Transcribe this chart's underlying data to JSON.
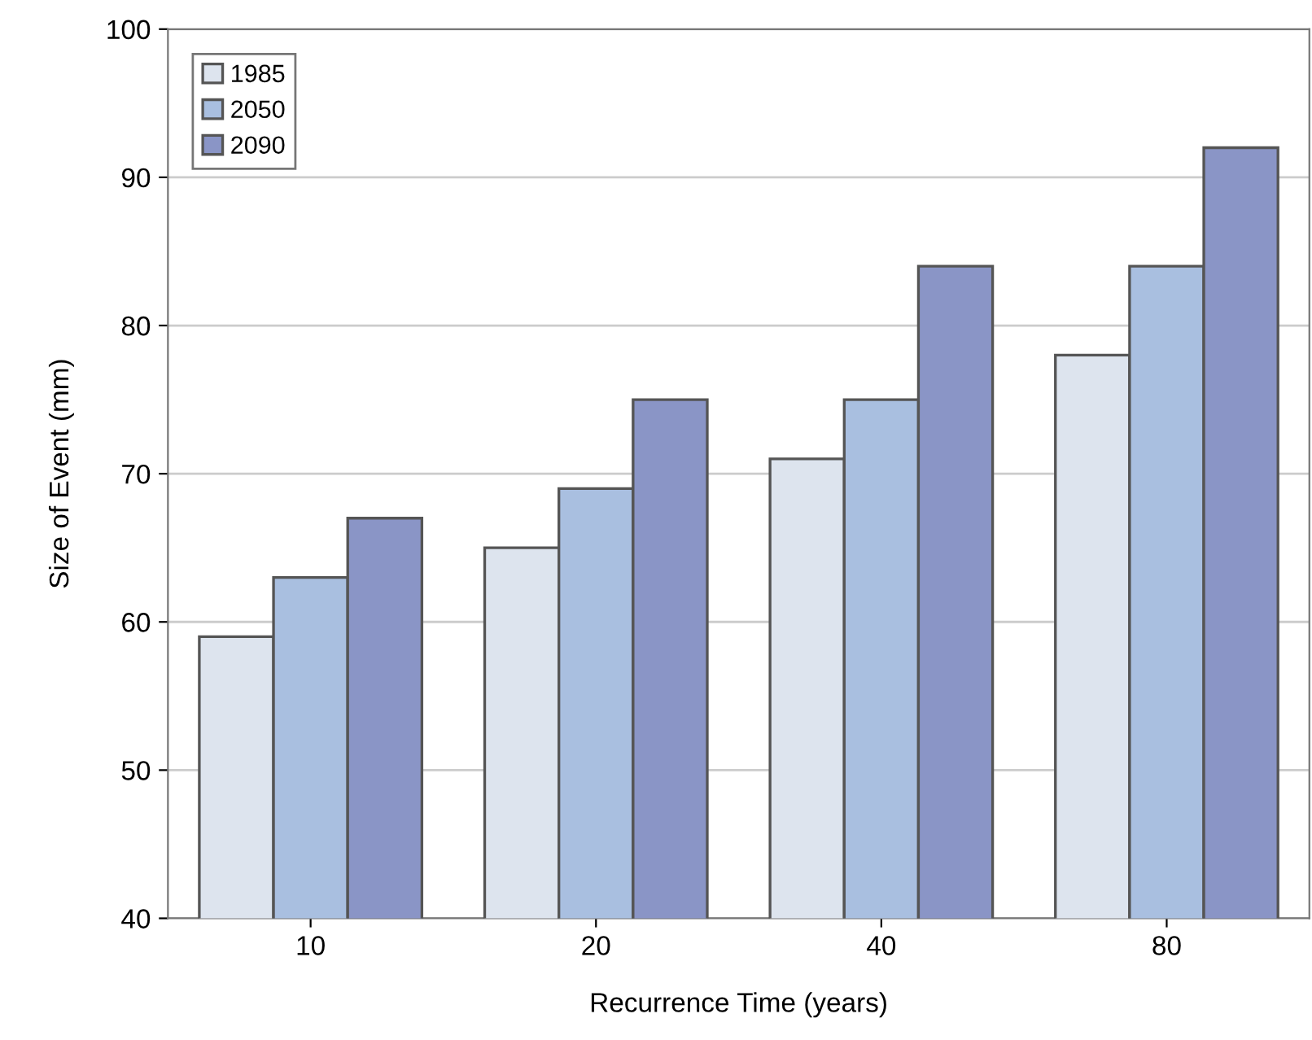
{
  "chart_data": {
    "type": "bar",
    "xlabel": "Recurrence Time (years)",
    "ylabel": "Size of Event (mm)",
    "categories": [
      "10",
      "20",
      "40",
      "80"
    ],
    "series": [
      {
        "name": "1985",
        "color": "#dde4ee",
        "values": [
          59,
          65,
          71,
          78
        ]
      },
      {
        "name": "2050",
        "color": "#a9bfe0",
        "values": [
          63,
          69,
          75,
          84
        ]
      },
      {
        "name": "2090",
        "color": "#8a95c6",
        "values": [
          67,
          75,
          84,
          92
        ]
      }
    ],
    "ylim": [
      40,
      100
    ],
    "yticks": [
      40,
      50,
      60,
      70,
      80,
      90,
      100
    ],
    "grid": "y",
    "legend": "top left"
  }
}
